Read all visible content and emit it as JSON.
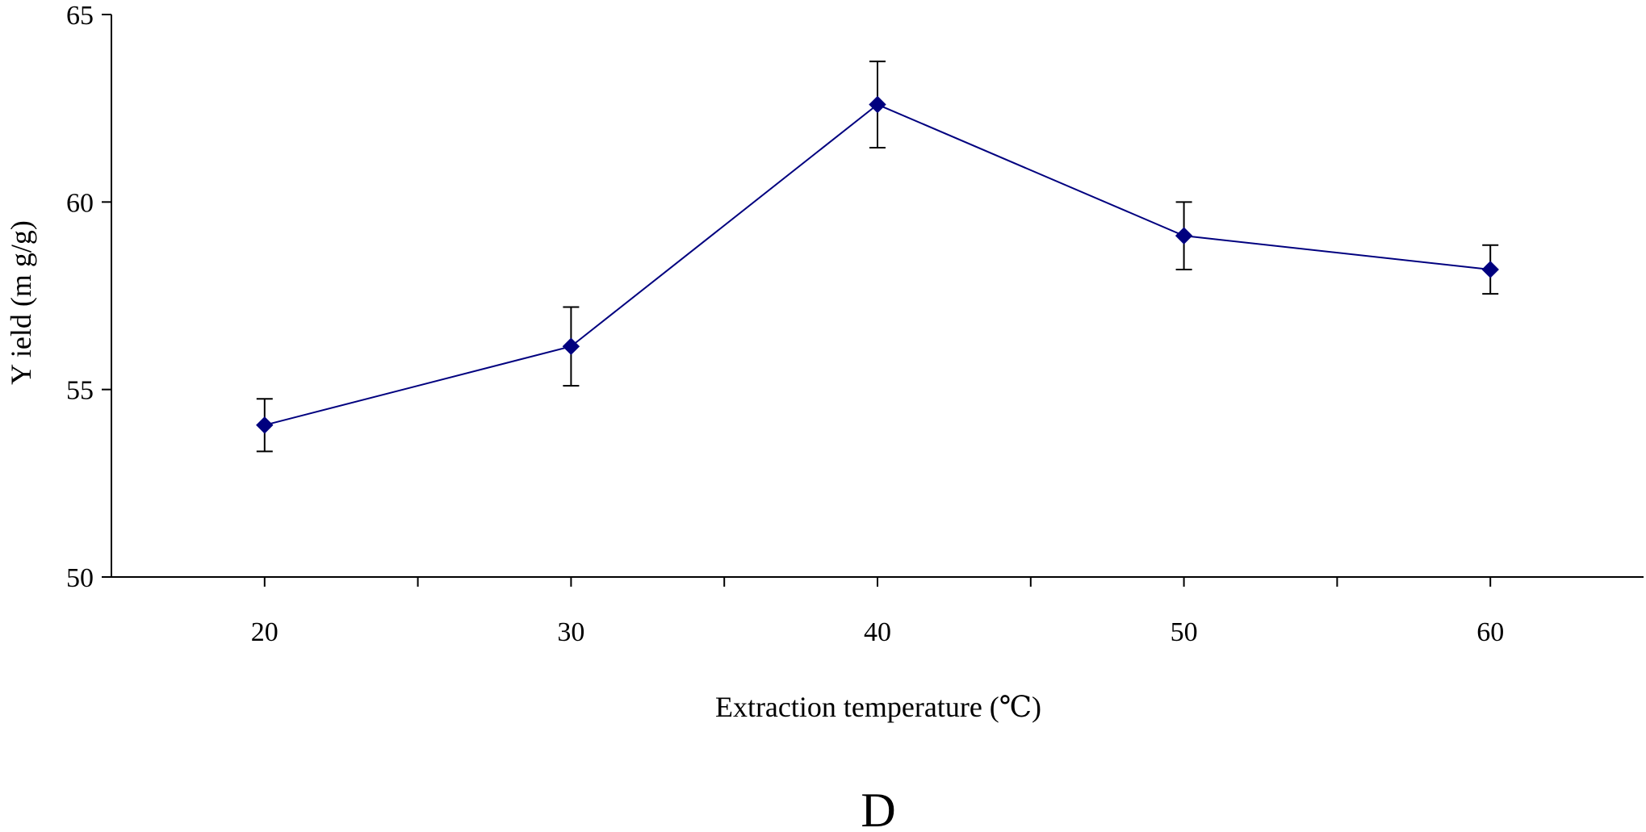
{
  "chart_data": {
    "type": "line",
    "title": "",
    "panel_label": "D",
    "xlabel": "Extraction temperature (℃)",
    "ylabel": "Y ield (m g/g)",
    "x": [
      20,
      30,
      40,
      50,
      60
    ],
    "x_tick_labels": [
      "20",
      "30",
      "40",
      "50",
      "60"
    ],
    "y_tick_labels": [
      "50",
      "55",
      "60",
      "65"
    ],
    "y_ticks": [
      50,
      55,
      60,
      65
    ],
    "ylim": [
      50,
      65
    ],
    "grid": false,
    "legend": "none",
    "series": [
      {
        "values": [
          54.05,
          56.15,
          62.6,
          59.1,
          58.2
        ],
        "error": [
          0.7,
          1.05,
          1.15,
          0.9,
          0.65
        ],
        "color": "#00007f",
        "marker": "diamond"
      }
    ]
  }
}
